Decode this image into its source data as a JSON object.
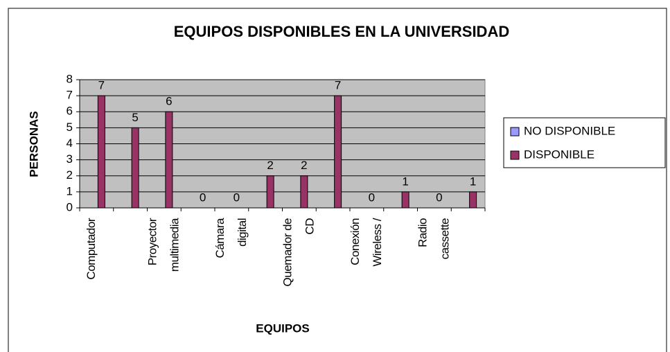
{
  "chart_data": {
    "type": "bar",
    "title": "EQUIPOS DISPONIBLES EN LA UNIVERSIDAD",
    "x_label": "EQUIPOS",
    "y_label": "PERSONAS",
    "categories": [
      [
        "Computador"
      ],
      null,
      [
        "Proyector",
        "multimedia"
      ],
      null,
      [
        "Cámara",
        "digital"
      ],
      null,
      [
        "Quemador de",
        "CD"
      ],
      null,
      [
        "Conexión",
        "Wireless /"
      ],
      null,
      [
        "Radio",
        "cassette"
      ],
      null
    ],
    "series": [
      {
        "name": "NO DISPONIBLE",
        "color": "#9999ff",
        "values": [
          0,
          0,
          0,
          0,
          0,
          0,
          0,
          0,
          0,
          0,
          0,
          0
        ]
      },
      {
        "name": "DISPONIBLE",
        "color": "#993366",
        "values": [
          7,
          5,
          6,
          0,
          0,
          2,
          2,
          7,
          0,
          1,
          0,
          1
        ],
        "data_labels": true
      }
    ],
    "ylim": [
      0,
      8
    ],
    "yticks": [
      0,
      1,
      2,
      3,
      4,
      5,
      6,
      7,
      8
    ],
    "grid": true,
    "legend": "right"
  }
}
